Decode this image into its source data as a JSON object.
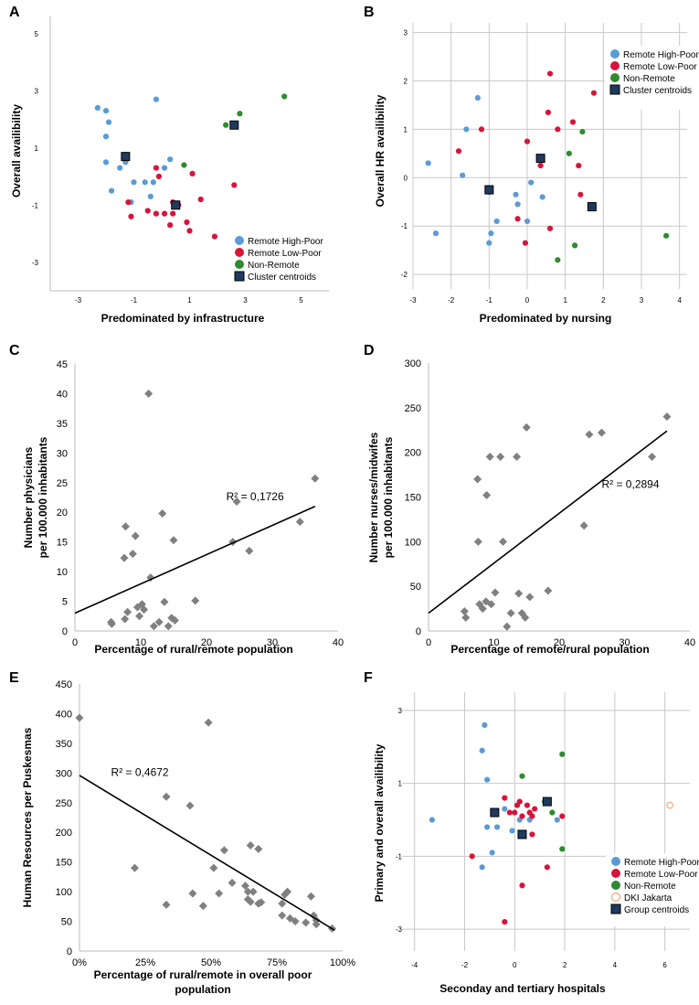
{
  "colors": {
    "remote_high_poor": "#5b9bd5",
    "remote_low_poor": "#d8143a",
    "non_remote": "#2e8b2e",
    "centroid_fill": "#1f3a5f",
    "gray_point": "#808080",
    "dki_jakarta": "#f4b183",
    "grid": "#c8c8c8",
    "axis": "#000000"
  },
  "chart_data": [
    {
      "panel": "A",
      "type": "scatter",
      "xlabel": "Predominated by infrastructure",
      "ylabel": "Overall availibility",
      "xlim": [
        -4,
        6
      ],
      "ylim": [
        -4,
        5.6
      ],
      "xticks": [
        -3,
        -1,
        1,
        3,
        5
      ],
      "yticks": [
        -3,
        -1,
        1,
        3,
        5
      ],
      "grid": false,
      "legend_position": "bottom-right",
      "series": [
        {
          "name": "Remote High-Poor",
          "key": "remote_high_poor",
          "marker": "circle",
          "points": [
            [
              -2.3,
              2.4
            ],
            [
              -2.0,
              2.3
            ],
            [
              -1.9,
              1.9
            ],
            [
              -2.0,
              1.4
            ],
            [
              -2.0,
              0.5
            ],
            [
              -1.8,
              -0.5
            ],
            [
              -1.5,
              0.3
            ],
            [
              -1.3,
              0.5
            ],
            [
              -1.0,
              -0.2
            ],
            [
              -0.6,
              -0.2
            ],
            [
              -0.3,
              -0.2
            ],
            [
              -0.4,
              -0.7
            ],
            [
              0.1,
              0.3
            ],
            [
              0.3,
              0.6
            ],
            [
              -0.2,
              2.7
            ],
            [
              -1.1,
              -0.9
            ]
          ]
        },
        {
          "name": "Remote Low-Poor",
          "key": "remote_low_poor",
          "marker": "circle",
          "points": [
            [
              -1.2,
              -0.9
            ],
            [
              -1.1,
              -1.4
            ],
            [
              -0.5,
              -1.2
            ],
            [
              -0.2,
              0.3
            ],
            [
              -0.1,
              0.0
            ],
            [
              -0.2,
              -1.3
            ],
            [
              0.1,
              -1.3
            ],
            [
              0.3,
              -1.7
            ],
            [
              0.4,
              -1.3
            ],
            [
              0.4,
              -0.9
            ],
            [
              0.6,
              -1.0
            ],
            [
              0.9,
              -1.6
            ],
            [
              1.0,
              -1.9
            ],
            [
              1.1,
              0.1
            ],
            [
              1.4,
              -0.8
            ],
            [
              1.9,
              -2.1
            ],
            [
              2.6,
              -0.3
            ]
          ]
        },
        {
          "name": "Non-Remote",
          "key": "non_remote",
          "marker": "circle",
          "points": [
            [
              0.8,
              0.4
            ],
            [
              2.3,
              1.8
            ],
            [
              2.8,
              2.2
            ],
            [
              4.4,
              2.8
            ]
          ]
        },
        {
          "name": "Cluster centroids",
          "key": "centroid",
          "marker": "square",
          "points": [
            [
              -1.3,
              0.7
            ],
            [
              0.5,
              -1.0
            ],
            [
              2.6,
              1.8
            ]
          ]
        }
      ]
    },
    {
      "panel": "B",
      "type": "scatter",
      "xlabel": "Predominated by nursing",
      "ylabel": "Overall HR availibility",
      "xlim": [
        -3,
        4.2
      ],
      "ylim": [
        -2.3,
        3.2
      ],
      "xticks": [
        -3,
        -2,
        -1,
        0,
        1,
        2,
        3,
        4
      ],
      "yticks": [
        -2,
        -1,
        0,
        1,
        2,
        3
      ],
      "tick_labels_x": [
        "-3",
        "-2",
        "-1",
        "0",
        "1",
        "2",
        "3",
        "4"
      ],
      "tick_labels_y": [
        "-2",
        "-1",
        "0",
        "1",
        "2",
        "3"
      ],
      "grid": true,
      "legend_position": "top-right",
      "series": [
        {
          "name": "Remote High-Poor",
          "key": "remote_high_poor",
          "marker": "circle",
          "points": [
            [
              -2.6,
              0.3
            ],
            [
              -2.4,
              -1.15
            ],
            [
              -1.7,
              0.05
            ],
            [
              -1.6,
              1.0
            ],
            [
              -1.3,
              1.65
            ],
            [
              -1.0,
              -0.3
            ],
            [
              -0.95,
              -1.15
            ],
            [
              -1.0,
              -1.35
            ],
            [
              -0.8,
              -0.9
            ],
            [
              0.0,
              -0.9
            ],
            [
              -0.3,
              -0.35
            ],
            [
              -0.25,
              -0.55
            ],
            [
              0.1,
              -0.1
            ],
            [
              0.4,
              -0.4
            ]
          ]
        },
        {
          "name": "Remote Low-Poor",
          "key": "remote_low_poor",
          "marker": "circle",
          "points": [
            [
              -1.8,
              0.55
            ],
            [
              -1.2,
              1.0
            ],
            [
              -0.25,
              -0.85
            ],
            [
              -0.05,
              -1.35
            ],
            [
              0.0,
              0.75
            ],
            [
              0.35,
              0.25
            ],
            [
              0.55,
              1.35
            ],
            [
              0.6,
              2.15
            ],
            [
              0.6,
              -1.05
            ],
            [
              0.8,
              1.0
            ],
            [
              1.2,
              1.15
            ],
            [
              1.35,
              0.25
            ],
            [
              1.4,
              -0.35
            ],
            [
              1.75,
              1.75
            ]
          ]
        },
        {
          "name": "Non-Remote",
          "key": "non_remote",
          "marker": "circle",
          "points": [
            [
              0.8,
              -1.7
            ],
            [
              1.1,
              0.5
            ],
            [
              1.25,
              -1.4
            ],
            [
              1.45,
              0.95
            ],
            [
              3.65,
              -1.2
            ]
          ]
        },
        {
          "name": "Cluster centroids",
          "key": "centroid",
          "marker": "square",
          "points": [
            [
              -1.0,
              -0.25
            ],
            [
              0.35,
              0.4
            ],
            [
              1.7,
              -0.6
            ]
          ]
        }
      ]
    },
    {
      "panel": "C",
      "type": "scatter",
      "xlabel": "Percentage of rural/remote population",
      "ylabel": [
        "Number physicians",
        "per 100.000 inhabitants"
      ],
      "xlim": [
        0,
        40
      ],
      "ylim": [
        0,
        45
      ],
      "xticks": [
        0,
        10,
        20,
        30,
        40
      ],
      "yticks": [
        0,
        5,
        10,
        15,
        20,
        25,
        30,
        35,
        40,
        45
      ],
      "grid": false,
      "trendline": {
        "x0": 0,
        "y0": 3.0,
        "x1": 36.5,
        "y1": 21.0
      },
      "annotation": {
        "text": "R² = 0,1726",
        "x": 23,
        "y": 22
      },
      "points": [
        [
          5.5,
          1.5
        ],
        [
          5.6,
          1.2
        ],
        [
          7.5,
          12.3
        ],
        [
          7.7,
          17.6
        ],
        [
          7.6,
          2.0
        ],
        [
          8.0,
          3.2
        ],
        [
          8.8,
          13.0
        ],
        [
          9.2,
          16.0
        ],
        [
          9.5,
          4.0
        ],
        [
          9.8,
          2.5
        ],
        [
          10.2,
          4.5
        ],
        [
          10.5,
          3.6
        ],
        [
          11.2,
          40.0
        ],
        [
          11.5,
          9.0
        ],
        [
          12.0,
          0.8
        ],
        [
          12.8,
          1.5
        ],
        [
          13.3,
          19.8
        ],
        [
          13.6,
          4.9
        ],
        [
          14.2,
          0.8
        ],
        [
          14.7,
          2.2
        ],
        [
          15.0,
          15.3
        ],
        [
          15.2,
          1.8
        ],
        [
          18.3,
          5.1
        ],
        [
          24.0,
          15.0
        ],
        [
          24.6,
          21.8
        ],
        [
          26.5,
          13.5
        ],
        [
          34.2,
          18.4
        ],
        [
          36.5,
          25.7
        ]
      ]
    },
    {
      "panel": "D",
      "type": "scatter",
      "xlabel": "Percentage of remote/rural population",
      "ylabel": [
        "Number nurses/midwifes",
        "per 100.000 inhabitants"
      ],
      "xlim": [
        0,
        40
      ],
      "ylim": [
        0,
        300
      ],
      "xticks": [
        0,
        10,
        20,
        30,
        40
      ],
      "yticks": [
        0,
        50,
        100,
        150,
        200,
        250,
        300
      ],
      "grid": false,
      "trendline": {
        "x0": 0,
        "y0": 20,
        "x1": 36.5,
        "y1": 224
      },
      "annotation": {
        "text": "R² = 0,2894",
        "x": 26.5,
        "y": 160
      },
      "points": [
        [
          5.5,
          22
        ],
        [
          5.7,
          15
        ],
        [
          7.5,
          170
        ],
        [
          7.8,
          30
        ],
        [
          7.6,
          100
        ],
        [
          8.3,
          25
        ],
        [
          8.8,
          33
        ],
        [
          8.9,
          152
        ],
        [
          9.4,
          195
        ],
        [
          9.6,
          30
        ],
        [
          10.2,
          43
        ],
        [
          11.0,
          195
        ],
        [
          11.4,
          100
        ],
        [
          12.0,
          5
        ],
        [
          12.6,
          20
        ],
        [
          13.5,
          195
        ],
        [
          13.8,
          42
        ],
        [
          14.3,
          20
        ],
        [
          14.8,
          15
        ],
        [
          15.0,
          228
        ],
        [
          15.5,
          38
        ],
        [
          18.3,
          45
        ],
        [
          23.8,
          118
        ],
        [
          24.6,
          220
        ],
        [
          26.5,
          222
        ],
        [
          34.2,
          195
        ],
        [
          36.5,
          240
        ]
      ]
    },
    {
      "panel": "E",
      "type": "scatter",
      "xlabel": [
        "Percentage of rural/remote in overall poor",
        "population"
      ],
      "ylabel": "Human Resources per Puskesmas",
      "xlim": [
        0,
        1
      ],
      "ylim": [
        0,
        450
      ],
      "xticks": [
        0,
        0.25,
        0.5,
        0.75,
        1
      ],
      "tick_labels_x": [
        "0%",
        "25%",
        "50%",
        "75%",
        "100%"
      ],
      "yticks": [
        0,
        50,
        100,
        150,
        200,
        250,
        300,
        350,
        400,
        450
      ],
      "grid": false,
      "trendline": {
        "x0": 0,
        "y0": 296,
        "x1": 0.97,
        "y1": 35
      },
      "annotation": {
        "text": "R² = 0,4672",
        "x": 0.12,
        "y": 295
      },
      "points": [
        [
          0.0,
          393
        ],
        [
          0.21,
          140
        ],
        [
          0.33,
          260
        ],
        [
          0.33,
          78
        ],
        [
          0.42,
          245
        ],
        [
          0.43,
          97
        ],
        [
          0.47,
          76
        ],
        [
          0.49,
          385
        ],
        [
          0.51,
          140
        ],
        [
          0.53,
          97
        ],
        [
          0.55,
          170
        ],
        [
          0.58,
          115
        ],
        [
          0.63,
          110
        ],
        [
          0.64,
          100
        ],
        [
          0.64,
          87
        ],
        [
          0.65,
          83
        ],
        [
          0.65,
          178
        ],
        [
          0.66,
          100
        ],
        [
          0.68,
          172
        ],
        [
          0.68,
          80
        ],
        [
          0.69,
          82
        ],
        [
          0.77,
          80
        ],
        [
          0.77,
          60
        ],
        [
          0.78,
          95
        ],
        [
          0.79,
          100
        ],
        [
          0.8,
          55
        ],
        [
          0.82,
          50
        ],
        [
          0.86,
          48
        ],
        [
          0.88,
          92
        ],
        [
          0.89,
          60
        ],
        [
          0.9,
          45
        ],
        [
          0.9,
          52
        ],
        [
          0.96,
          38
        ]
      ]
    },
    {
      "panel": "F",
      "type": "scatter",
      "xlabel": "Seconday and tertiary hospitals",
      "ylabel": "Primary and overall availibility",
      "xlim": [
        -4.5,
        7
      ],
      "ylim": [
        -3.6,
        3.5
      ],
      "xticks": [
        -4,
        -2,
        0,
        2,
        4,
        6
      ],
      "yticks": [
        -3,
        -1,
        1,
        3
      ],
      "grid": true,
      "legend_position": "bottom-right",
      "series": [
        {
          "name": "Remote High-Poor",
          "key": "remote_high_poor",
          "marker": "circle",
          "points": [
            [
              -3.3,
              0.0
            ],
            [
              -1.2,
              2.6
            ],
            [
              -1.3,
              1.9
            ],
            [
              -1.1,
              1.1
            ],
            [
              -1.3,
              -1.3
            ],
            [
              -0.9,
              -0.9
            ],
            [
              -1.1,
              -0.2
            ],
            [
              -0.7,
              -0.2
            ],
            [
              -0.4,
              0.3
            ],
            [
              -0.1,
              -0.3
            ],
            [
              0.2,
              0.0
            ],
            [
              0.6,
              0.0
            ],
            [
              1.7,
              0.0
            ]
          ]
        },
        {
          "name": "Remote Low-Poor",
          "key": "remote_low_poor",
          "marker": "circle",
          "points": [
            [
              -1.7,
              -1.0
            ],
            [
              -0.4,
              0.6
            ],
            [
              -0.2,
              0.2
            ],
            [
              0.0,
              0.2
            ],
            [
              0.1,
              0.4
            ],
            [
              0.2,
              0.5
            ],
            [
              0.3,
              0.1
            ],
            [
              0.5,
              0.4
            ],
            [
              0.6,
              0.2
            ],
            [
              0.8,
              0.3
            ],
            [
              0.7,
              0.1
            ],
            [
              0.7,
              -0.4
            ],
            [
              0.3,
              -1.8
            ],
            [
              1.9,
              0.1
            ],
            [
              1.3,
              -1.3
            ],
            [
              -0.4,
              -2.8
            ]
          ]
        },
        {
          "name": "Non-Remote",
          "key": "non_remote",
          "marker": "circle",
          "points": [
            [
              0.3,
              1.2
            ],
            [
              1.2,
              0.5
            ],
            [
              1.5,
              0.2
            ],
            [
              1.9,
              1.8
            ],
            [
              1.9,
              -0.8
            ]
          ]
        },
        {
          "name": "DKI Jakarta",
          "key": "dki_jakarta",
          "marker": "open-circle",
          "points": [
            [
              6.2,
              0.4
            ]
          ]
        },
        {
          "name": "Group centroids",
          "key": "centroid",
          "marker": "square",
          "points": [
            [
              -0.8,
              0.2
            ],
            [
              0.3,
              -0.4
            ],
            [
              1.3,
              0.5
            ]
          ]
        }
      ]
    }
  ]
}
